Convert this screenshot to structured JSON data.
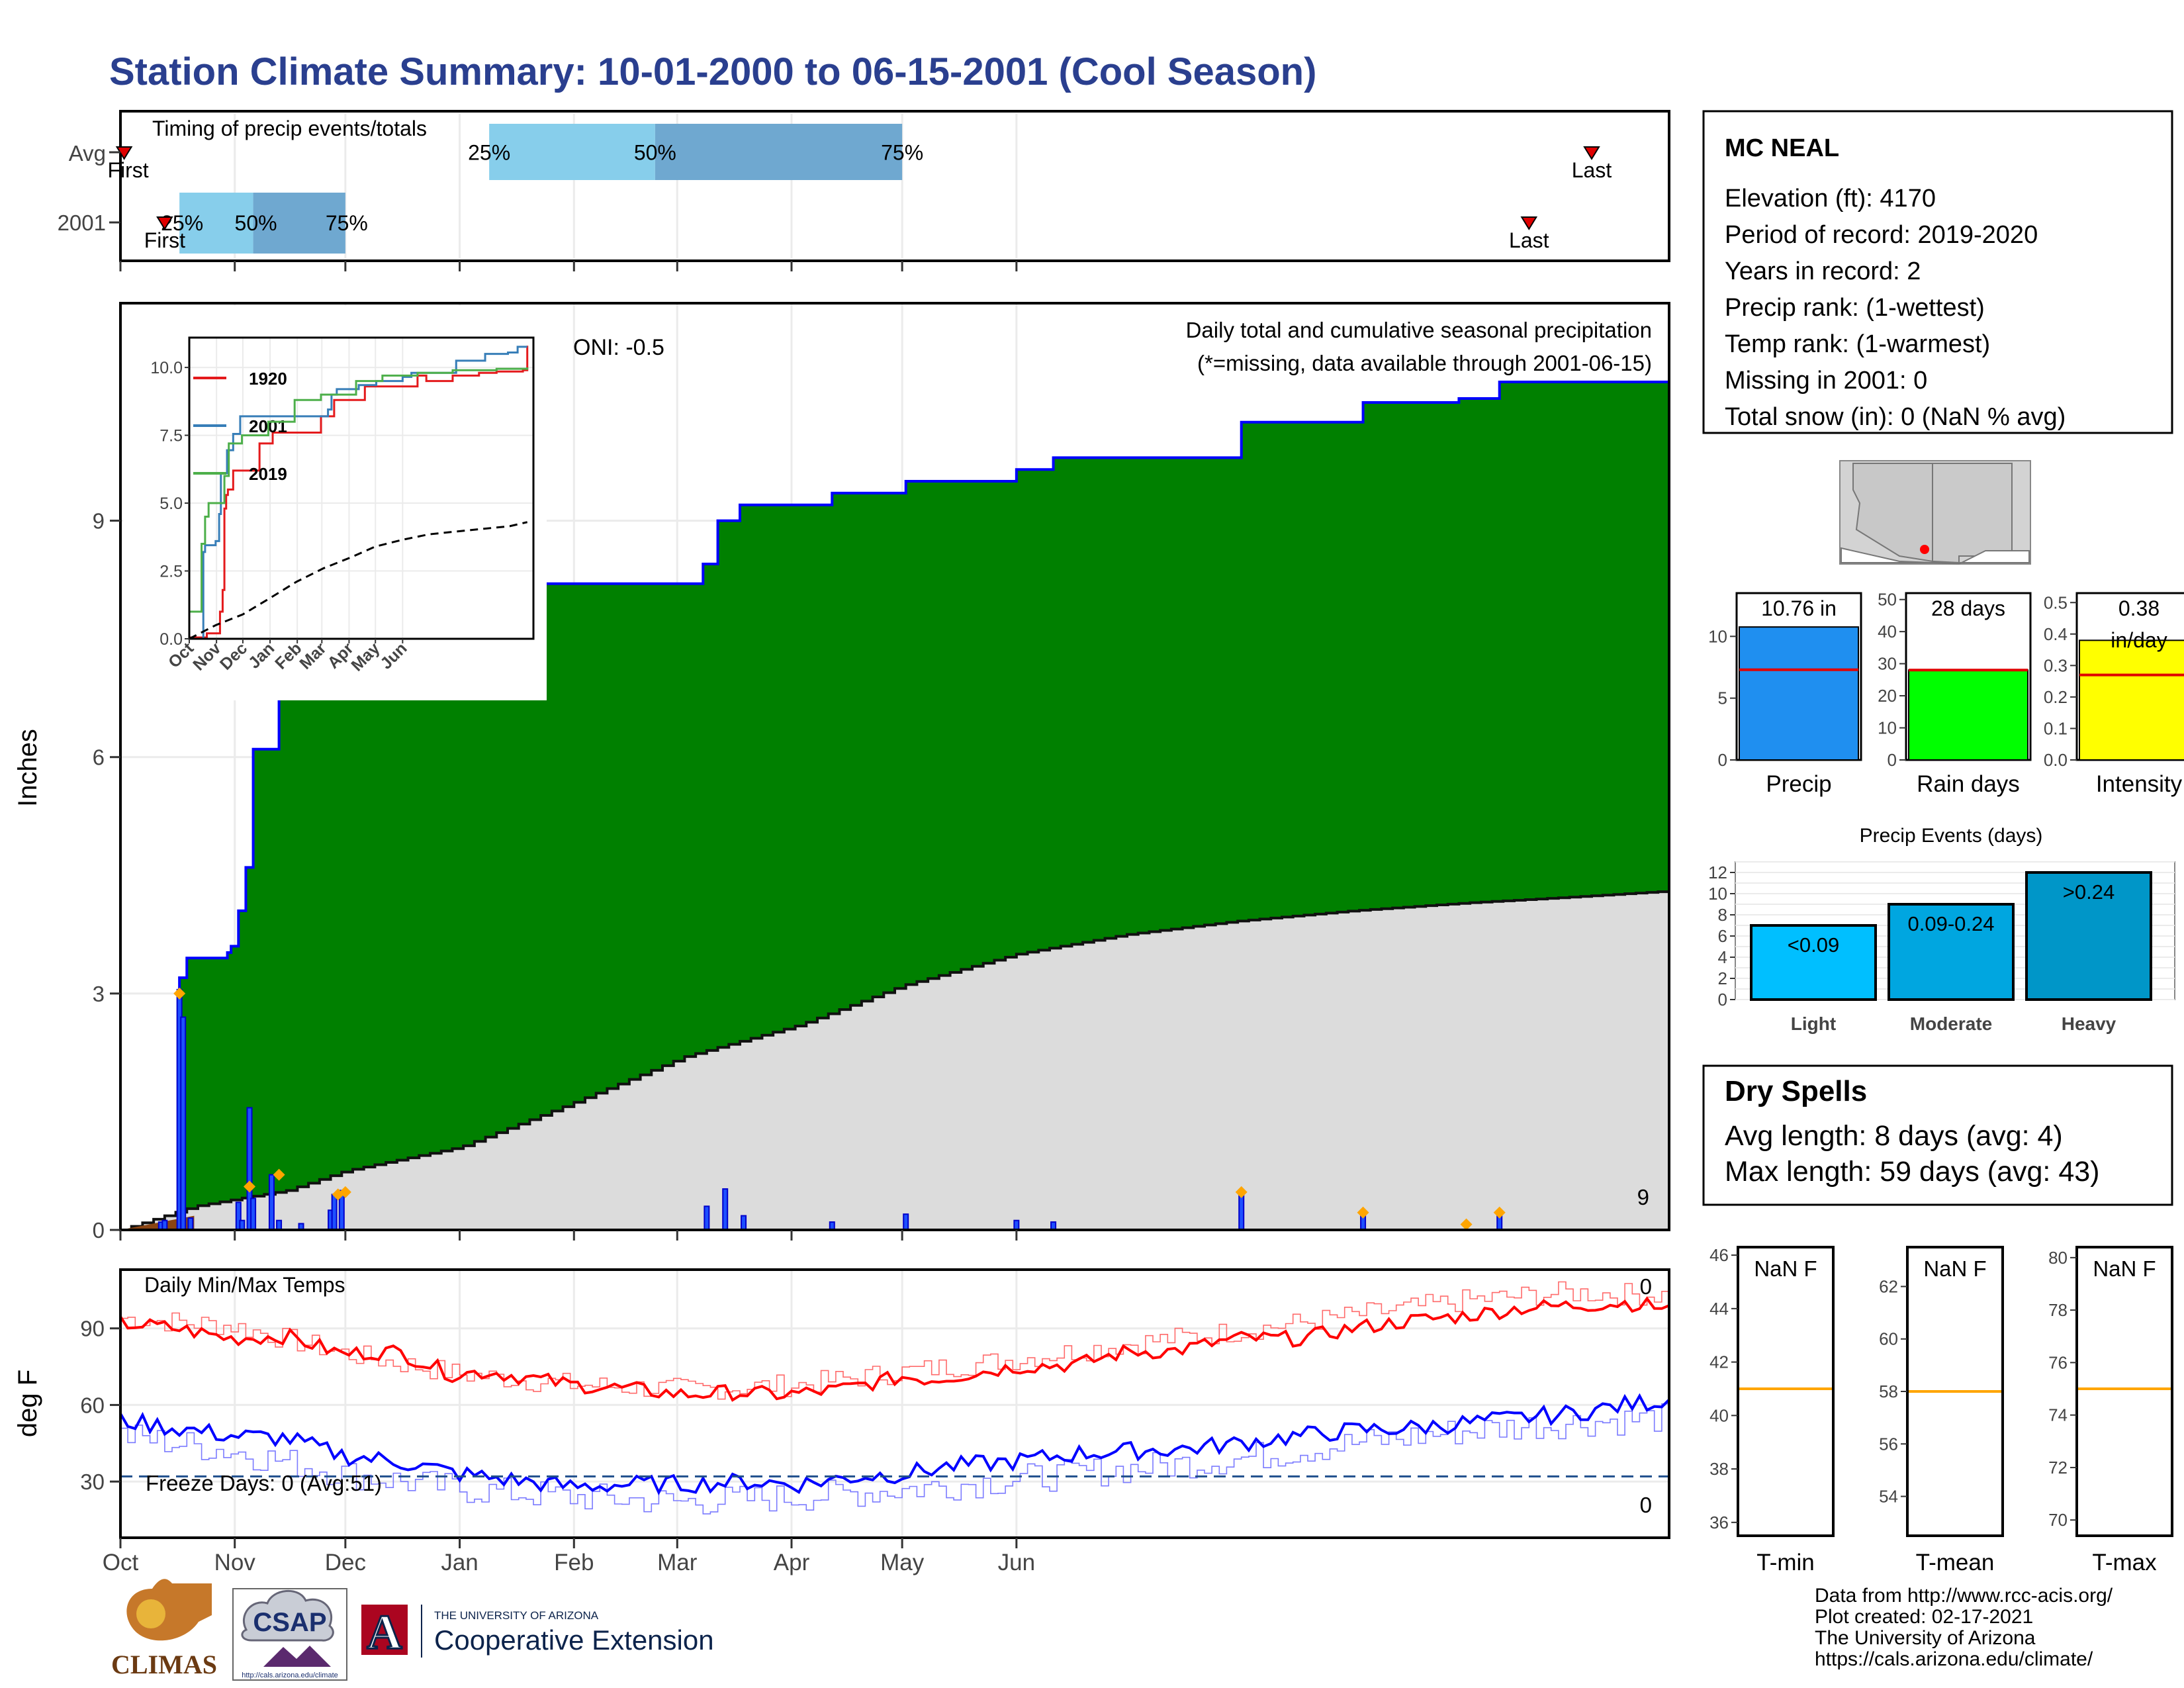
{
  "page": {
    "title": "Station Climate Summary: 10-01-2000 to 06-15-2001 (Cool Season)"
  },
  "timing_panel": {
    "label": "Timing of precip events/totals",
    "rows": [
      "Avg",
      "2001"
    ],
    "pct_labels": [
      "25%",
      "50%",
      "75%"
    ],
    "first_label": "First",
    "last_label": "Last",
    "avg_bar": {
      "p25_day": 100,
      "p50_day": 145,
      "p75_day": 212
    },
    "obs_bar": {
      "p25_day": 16,
      "p50_day": 36,
      "p75_day": 61
    },
    "avg_first_day": 1,
    "avg_last_day": 399,
    "obs_first_day": 12,
    "obs_last_day": 382
  },
  "precip_panel": {
    "ylabel": "Inches",
    "header": "Daily total and cumulative seasonal precipitation",
    "missing_note": "(*=missing, data available through 2001-06-15)",
    "oni": "ONI: -0.5",
    "bottom_count": "9",
    "yticks": [
      0,
      3,
      6,
      9
    ],
    "ylim": [
      0,
      11.76
    ],
    "month_labels": [
      "Oct",
      "Nov",
      "Dec",
      "Jan",
      "Feb",
      "Mar",
      "Apr",
      "May",
      "Jun"
    ],
    "cum_steps": [
      {
        "day": 0,
        "v": 0.0
      },
      {
        "day": 16,
        "v": 3.2
      },
      {
        "day": 18,
        "v": 3.45
      },
      {
        "day": 29,
        "v": 3.52
      },
      {
        "day": 30,
        "v": 3.6
      },
      {
        "day": 32,
        "v": 4.05
      },
      {
        "day": 34,
        "v": 4.6
      },
      {
        "day": 36,
        "v": 6.1
      },
      {
        "day": 43,
        "v": 6.95
      },
      {
        "day": 44,
        "v": 7.1
      },
      {
        "day": 50,
        "v": 7.55
      },
      {
        "day": 57,
        "v": 7.82
      },
      {
        "day": 58,
        "v": 8.2
      },
      {
        "day": 158,
        "v": 8.45
      },
      {
        "day": 162,
        "v": 9.0
      },
      {
        "day": 168,
        "v": 9.2
      },
      {
        "day": 193,
        "v": 9.35
      },
      {
        "day": 213,
        "v": 9.5
      },
      {
        "day": 243,
        "v": 9.65
      },
      {
        "day": 253,
        "v": 9.8
      },
      {
        "day": 304,
        "v": 10.25
      },
      {
        "day": 337,
        "v": 10.5
      },
      {
        "day": 363,
        "v": 10.55
      },
      {
        "day": 374,
        "v": 10.76
      },
      {
        "day": 420,
        "v": 10.76
      }
    ],
    "avg_curve": [
      {
        "day": 0,
        "v": 0.0
      },
      {
        "day": 20,
        "v": 0.3
      },
      {
        "day": 45,
        "v": 0.5
      },
      {
        "day": 61,
        "v": 0.75
      },
      {
        "day": 92,
        "v": 1.05
      },
      {
        "day": 122,
        "v": 1.6
      },
      {
        "day": 153,
        "v": 2.2
      },
      {
        "day": 184,
        "v": 2.6
      },
      {
        "day": 212,
        "v": 3.1
      },
      {
        "day": 243,
        "v": 3.5
      },
      {
        "day": 273,
        "v": 3.75
      },
      {
        "day": 303,
        "v": 3.92
      },
      {
        "day": 334,
        "v": 4.05
      },
      {
        "day": 365,
        "v": 4.15
      },
      {
        "day": 392,
        "v": 4.22
      },
      {
        "day": 420,
        "v": 4.3
      }
    ],
    "daily_bars": [
      {
        "day": 11,
        "v": 0.1
      },
      {
        "day": 12,
        "v": 0.12
      },
      {
        "day": 16,
        "v": 3.05
      },
      {
        "day": 17,
        "v": 2.7
      },
      {
        "day": 19,
        "v": 0.15
      },
      {
        "day": 32,
        "v": 0.35
      },
      {
        "day": 33,
        "v": 0.12
      },
      {
        "day": 35,
        "v": 1.55
      },
      {
        "day": 36,
        "v": 0.4
      },
      {
        "day": 41,
        "v": 0.7
      },
      {
        "day": 43,
        "v": 0.12
      },
      {
        "day": 49,
        "v": 0.08
      },
      {
        "day": 57,
        "v": 0.25
      },
      {
        "day": 58,
        "v": 0.45
      },
      {
        "day": 60,
        "v": 0.5
      },
      {
        "day": 159,
        "v": 0.3
      },
      {
        "day": 164,
        "v": 0.52
      },
      {
        "day": 169,
        "v": 0.18
      },
      {
        "day": 193,
        "v": 0.1
      },
      {
        "day": 213,
        "v": 0.2
      },
      {
        "day": 243,
        "v": 0.12
      },
      {
        "day": 253,
        "v": 0.1
      },
      {
        "day": 304,
        "v": 0.48
      },
      {
        "day": 337,
        "v": 0.22
      },
      {
        "day": 374,
        "v": 0.22
      }
    ],
    "diamonds": [
      {
        "day": 16,
        "v": 3.0
      },
      {
        "day": 35,
        "v": 0.55
      },
      {
        "day": 43,
        "v": 0.7
      },
      {
        "day": 59,
        "v": 0.45
      },
      {
        "day": 61,
        "v": 0.48
      },
      {
        "day": 304,
        "v": 0.48
      },
      {
        "day": 337,
        "v": 0.22
      },
      {
        "day": 365,
        "v": 0.07
      },
      {
        "day": 374,
        "v": 0.22
      }
    ]
  },
  "inset_chart": {
    "yticks": [
      "0.0",
      "2.5",
      "5.0",
      "7.5",
      "10.0"
    ],
    "xticks": [
      "Oct",
      "Nov",
      "Dec",
      "Jan",
      "Feb",
      "Mar",
      "Apr",
      "May",
      "Jun"
    ],
    "series": [
      {
        "name": "1920",
        "color": "#e41a1c",
        "points": [
          [
            0,
            0.05
          ],
          [
            20,
            0.2
          ],
          [
            35,
            1.0
          ],
          [
            38,
            1.8
          ],
          [
            40,
            4.8
          ],
          [
            42,
            5.3
          ],
          [
            44,
            5.5
          ],
          [
            50,
            6.2
          ],
          [
            80,
            7.2
          ],
          [
            95,
            7.6
          ],
          [
            150,
            8.2
          ],
          [
            165,
            8.8
          ],
          [
            200,
            9.3
          ],
          [
            260,
            9.7
          ],
          [
            270,
            9.5
          ],
          [
            300,
            9.7
          ],
          [
            330,
            9.8
          ],
          [
            350,
            9.85
          ],
          [
            380,
            9.9
          ],
          [
            385,
            10.8
          ]
        ]
      },
      {
        "name": "2001",
        "color": "#377eb8",
        "points": [
          [
            0,
            0
          ],
          [
            16,
            3.2
          ],
          [
            18,
            3.45
          ],
          [
            30,
            3.6
          ],
          [
            34,
            4.6
          ],
          [
            36,
            6.1
          ],
          [
            43,
            6.95
          ],
          [
            50,
            7.55
          ],
          [
            58,
            8.2
          ],
          [
            158,
            8.45
          ],
          [
            162,
            9.0
          ],
          [
            168,
            9.2
          ],
          [
            193,
            9.35
          ],
          [
            213,
            9.5
          ],
          [
            243,
            9.65
          ],
          [
            253,
            9.8
          ],
          [
            304,
            10.25
          ],
          [
            337,
            10.5
          ],
          [
            363,
            10.55
          ],
          [
            374,
            10.76
          ],
          [
            385,
            10.76
          ]
        ]
      },
      {
        "name": "2019",
        "color": "#4daf4a",
        "points": [
          [
            0,
            1.0
          ],
          [
            10,
            1.0
          ],
          [
            14,
            3.5
          ],
          [
            18,
            4.5
          ],
          [
            22,
            5.0
          ],
          [
            40,
            6.0
          ],
          [
            45,
            7.2
          ],
          [
            60,
            7.5
          ],
          [
            90,
            8.0
          ],
          [
            120,
            8.8
          ],
          [
            150,
            9.0
          ],
          [
            190,
            9.5
          ],
          [
            220,
            9.7
          ],
          [
            260,
            9.8
          ],
          [
            300,
            9.9
          ],
          [
            350,
            9.95
          ],
          [
            385,
            10.0
          ]
        ]
      }
    ],
    "avg_points": [
      [
        0,
        0
      ],
      [
        30,
        0.5
      ],
      [
        61,
        0.9
      ],
      [
        92,
        1.5
      ],
      [
        122,
        2.1
      ],
      [
        153,
        2.6
      ],
      [
        184,
        3.0
      ],
      [
        212,
        3.4
      ],
      [
        243,
        3.65
      ],
      [
        273,
        3.85
      ],
      [
        303,
        3.95
      ],
      [
        334,
        4.05
      ],
      [
        365,
        4.15
      ],
      [
        385,
        4.3
      ]
    ]
  },
  "temp_panel": {
    "label": "Daily Min/Max Temps",
    "ylabel": "deg F",
    "yticks": [
      30,
      60,
      90
    ],
    "ylim": [
      8,
      113
    ],
    "freeze_label": "Freeze Days: 0 (Avg:51)",
    "freeze_line": 32,
    "max_count": "0",
    "min_count": "0",
    "obs_max": [
      [
        0,
        92
      ],
      [
        15,
        90
      ],
      [
        30,
        86
      ],
      [
        45,
        87
      ],
      [
        60,
        80
      ],
      [
        75,
        81
      ],
      [
        90,
        72
      ],
      [
        100,
        73
      ],
      [
        122,
        68
      ],
      [
        140,
        66
      ],
      [
        153,
        64
      ],
      [
        165,
        65
      ],
      [
        180,
        64
      ],
      [
        195,
        66
      ],
      [
        212,
        71
      ],
      [
        220,
        70
      ],
      [
        243,
        75
      ],
      [
        260,
        76
      ],
      [
        273,
        81
      ],
      [
        285,
        81
      ],
      [
        303,
        86
      ],
      [
        320,
        86
      ],
      [
        334,
        90
      ],
      [
        350,
        93
      ],
      [
        365,
        95
      ],
      [
        380,
        98
      ],
      [
        395,
        99
      ],
      [
        408,
        100
      ],
      [
        420,
        98
      ]
    ],
    "avg_max": [
      [
        0,
        94
      ],
      [
        30,
        91
      ],
      [
        61,
        80
      ],
      [
        92,
        72
      ],
      [
        122,
        68
      ],
      [
        153,
        66
      ],
      [
        184,
        68
      ],
      [
        212,
        73
      ],
      [
        243,
        78
      ],
      [
        273,
        84
      ],
      [
        303,
        89
      ],
      [
        334,
        95
      ],
      [
        365,
        101
      ],
      [
        392,
        104
      ],
      [
        420,
        103
      ]
    ],
    "obs_min": [
      [
        0,
        54
      ],
      [
        15,
        51
      ],
      [
        30,
        48
      ],
      [
        45,
        47
      ],
      [
        61,
        40
      ],
      [
        75,
        38
      ],
      [
        92,
        33
      ],
      [
        110,
        30
      ],
      [
        122,
        28
      ],
      [
        140,
        29
      ],
      [
        153,
        29
      ],
      [
        170,
        30
      ],
      [
        184,
        29
      ],
      [
        200,
        32
      ],
      [
        212,
        33
      ],
      [
        225,
        36
      ],
      [
        243,
        38
      ],
      [
        260,
        41
      ],
      [
        273,
        42
      ],
      [
        290,
        43
      ],
      [
        303,
        45
      ],
      [
        320,
        48
      ],
      [
        334,
        50
      ],
      [
        350,
        51
      ],
      [
        365,
        53
      ],
      [
        380,
        55
      ],
      [
        395,
        57
      ],
      [
        408,
        60
      ],
      [
        420,
        62
      ]
    ],
    "avg_min": [
      [
        0,
        48
      ],
      [
        30,
        42
      ],
      [
        61,
        33
      ],
      [
        92,
        27
      ],
      [
        122,
        24
      ],
      [
        153,
        22
      ],
      [
        184,
        24
      ],
      [
        212,
        27
      ],
      [
        243,
        31
      ],
      [
        273,
        35
      ],
      [
        303,
        39
      ],
      [
        334,
        45
      ],
      [
        365,
        50
      ],
      [
        392,
        53
      ],
      [
        420,
        55
      ]
    ]
  },
  "info_box": {
    "station": "MC NEAL",
    "lines": [
      "Elevation (ft): 4170",
      "Period of record: 2019-2020",
      "Years in record: 2",
      "Precip rank:  (1-wettest)",
      "Temp rank:  (1-warmest)",
      "Missing in 2001: 0",
      "Total snow (in): 0 (NaN % avg)"
    ],
    "station_marker_color": "#ff0000"
  },
  "mini_bars": [
    {
      "name": "Precip",
      "label": "10.76 in",
      "value": 10.76,
      "avg": 7.3,
      "ymax": 13.5,
      "yticks": [
        "0",
        "5",
        "10"
      ],
      "tickvals": [
        0,
        5,
        10
      ],
      "color": "#1f8ff0"
    },
    {
      "name": "Rain days",
      "label": "28 days",
      "value": 28,
      "avg": 28,
      "ymax": 52,
      "yticks": [
        "0",
        "10",
        "20",
        "30",
        "40",
        "50"
      ],
      "tickvals": [
        0,
        10,
        20,
        30,
        40,
        50
      ],
      "color": "#00ff00"
    },
    {
      "name": "Intensity",
      "label": "0.38",
      "sublabel": "in/day",
      "value": 0.38,
      "avg": 0.27,
      "ymax": 0.53,
      "yticks": [
        "0.0",
        "0.1",
        "0.2",
        "0.3",
        "0.4",
        "0.5"
      ],
      "tickvals": [
        0,
        0.1,
        0.2,
        0.3,
        0.4,
        0.5
      ],
      "color": "#ffff00"
    }
  ],
  "events_chart": {
    "title": "Precip Events (days)",
    "type": "bar",
    "categories": [
      "Light",
      "Moderate",
      "Heavy"
    ],
    "bar_labels": [
      "<0.09",
      "0.09-0.24",
      ">0.24"
    ],
    "values": [
      7,
      9,
      12
    ],
    "yticks": [
      "0",
      "2",
      "4",
      "6",
      "8",
      "10",
      "12"
    ],
    "ylim": [
      0,
      13
    ],
    "colors": [
      "#00bfff",
      "#00a6e0",
      "#0096c8"
    ]
  },
  "dry_spells": {
    "title": "Dry Spells",
    "avg_line": "Avg length: 8 days (avg: 4)",
    "max_line": "Max length: 59 days (avg: 43)",
    "color": "#a52a2a"
  },
  "temp_boxes": [
    {
      "name": "T-min",
      "label": "NaN F",
      "yticks": [
        "36",
        "38",
        "40",
        "42",
        "44",
        "46"
      ],
      "ylim": [
        35.5,
        46.3
      ],
      "avg": 41
    },
    {
      "name": "T-mean",
      "label": "NaN F",
      "yticks": [
        "54",
        "56",
        "58",
        "60",
        "62"
      ],
      "ylim": [
        52.5,
        63.5
      ],
      "avg": 58
    },
    {
      "name": "T-max",
      "label": "NaN F",
      "yticks": [
        "70",
        "72",
        "74",
        "76",
        "78",
        "80"
      ],
      "ylim": [
        69.4,
        80.4
      ],
      "avg": 75
    }
  ],
  "credits": [
    "Data from http://www.rcc-acis.org/",
    "Plot created: 02-17-2021",
    "The University of Arizona",
    "https://cals.arizona.edu/climate/"
  ],
  "logos": {
    "climas": "CLIMAS",
    "csap": "CSAP",
    "csap_url": "http://cals.arizona.edu/climate",
    "ua_letter": "A",
    "ua_small": "THE UNIVERSITY OF ARIZONA",
    "ua_big": "Cooperative Extension"
  },
  "colors": {
    "title": "#2a3f8f",
    "cum_fill": "#008000",
    "cum_line": "#0000ff",
    "avg_fill": "#dcdcdc",
    "bar_fill": "#1e50ff",
    "diamond": "#ffa500",
    "max_line": "#ff0000",
    "min_line": "#0000ff",
    "freeze_line": "#1f4e8c"
  }
}
